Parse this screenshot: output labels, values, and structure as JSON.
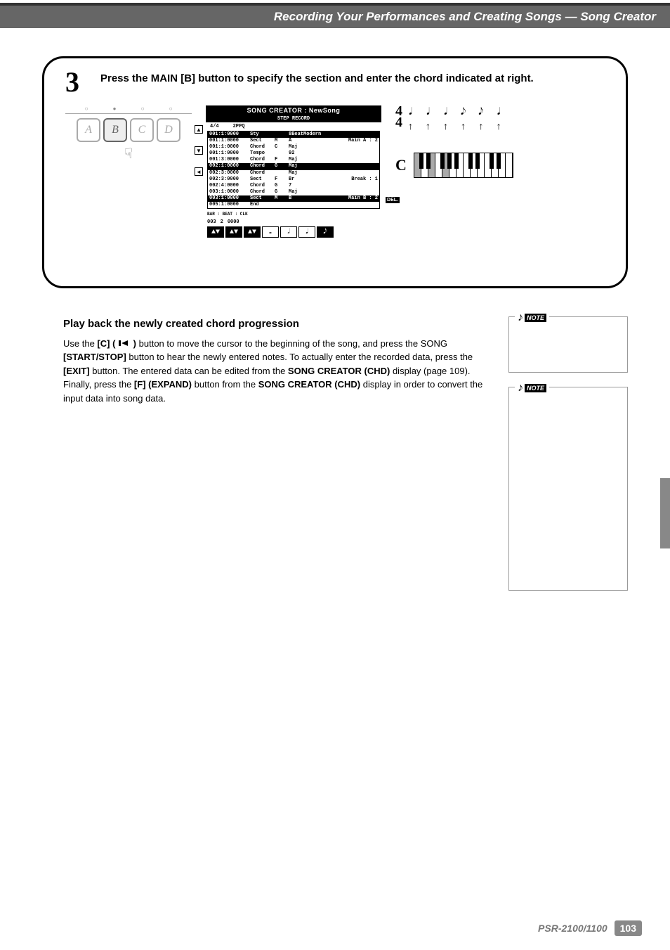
{
  "chapter_title": "Recording Your Performances and Creating Songs — Song Creator",
  "step": {
    "number": "3",
    "instruction": "Press the MAIN [B] button to specify the section and enter the chord indicated at right."
  },
  "abcd": {
    "top_marks": [
      "○",
      "●",
      "○",
      "○"
    ],
    "letters": [
      "A",
      "B",
      "C",
      "D"
    ],
    "pressed_index": 1
  },
  "lcd": {
    "title": "SONG CREATOR : NewSong",
    "subtitle": "STEP RECORD",
    "header_left": "4/4",
    "header_right": "2PPQ",
    "rows": [
      {
        "t": "001:1:0000",
        "c2": "Sty",
        "c3": "",
        "c4": "8BeatModern",
        "c5": "",
        "sel": true
      },
      {
        "t": "001:1:0000",
        "c2": "Sect",
        "c3": "M",
        "c4": "A",
        "c5": "Main A  : 2",
        "sel": false
      },
      {
        "t": "001:1:0000",
        "c2": "Chord",
        "c3": "C",
        "c4": "Maj",
        "c5": "",
        "sel": false
      },
      {
        "t": "001:1:0000",
        "c2": "Tempo",
        "c3": "",
        "c4": "92",
        "c5": "",
        "sel": false
      },
      {
        "t": "001:3:0000",
        "c2": "Chord",
        "c3": "F",
        "c4": "Maj",
        "c5": "",
        "sel": false
      },
      {
        "t": "002:1:0000",
        "c2": "Chord",
        "c3": "G",
        "c4": "Maj",
        "c5": "",
        "sel": true
      },
      {
        "t": "002:3:0000",
        "c2": "Chord",
        "c3": "",
        "c4": "Maj",
        "c5": "",
        "sel": false
      },
      {
        "t": "002:3:0000",
        "c2": "Sect",
        "c3": "F",
        "c4": "Br",
        "c5": "Break  : 1",
        "sel": false
      },
      {
        "t": "002:4:0000",
        "c2": "Chord",
        "c3": "G",
        "c4": "7",
        "c5": "",
        "sel": false
      },
      {
        "t": "003:1:0000",
        "c2": "Chord",
        "c3": "G",
        "c4": "Maj",
        "c5": "",
        "sel": false
      },
      {
        "t": "003:1:0000",
        "c2": "Sect",
        "c3": "M",
        "c4": "B",
        "c5": "Main B  : 2",
        "sel": true
      },
      {
        "t": "005:1:0000",
        "c2": "End",
        "c3": "",
        "c4": "",
        "c5": "",
        "sel": false
      }
    ],
    "bar_beat_clk": {
      "label": "BAR : BEAT : CLK",
      "bar": "003",
      "beat": "2",
      "clk": "0000"
    },
    "del_label": "DEL."
  },
  "timesig": {
    "num": "4",
    "den": "4"
  },
  "chord": {
    "letter": "C"
  },
  "playback": {
    "heading": "Play back the newly created chord progression",
    "p1a": "Use the ",
    "p1b": "[C] (",
    "p1c": ")",
    "p1d": " button to move the cursor to the beginning of the song, and press the SONG ",
    "p1e": "[START/STOP]",
    "p1f": " button to hear the newly entered notes. To actually enter the recorded data, press the ",
    "p1g": "[EXIT]",
    "p1h": " button. The entered data can be edited from the ",
    "p1i": "SONG CREATOR (CHD)",
    "p1j": " display (page 109). Finally, press the ",
    "p1k": "[F] (EXPAND)",
    "p1l": " button from the ",
    "p1m": "SONG CREATOR (CHD)",
    "p1n": " display in order to convert the input data into song data."
  },
  "note_label": "NOTE",
  "footer": {
    "model": "PSR-2100/1100",
    "page": "103"
  }
}
